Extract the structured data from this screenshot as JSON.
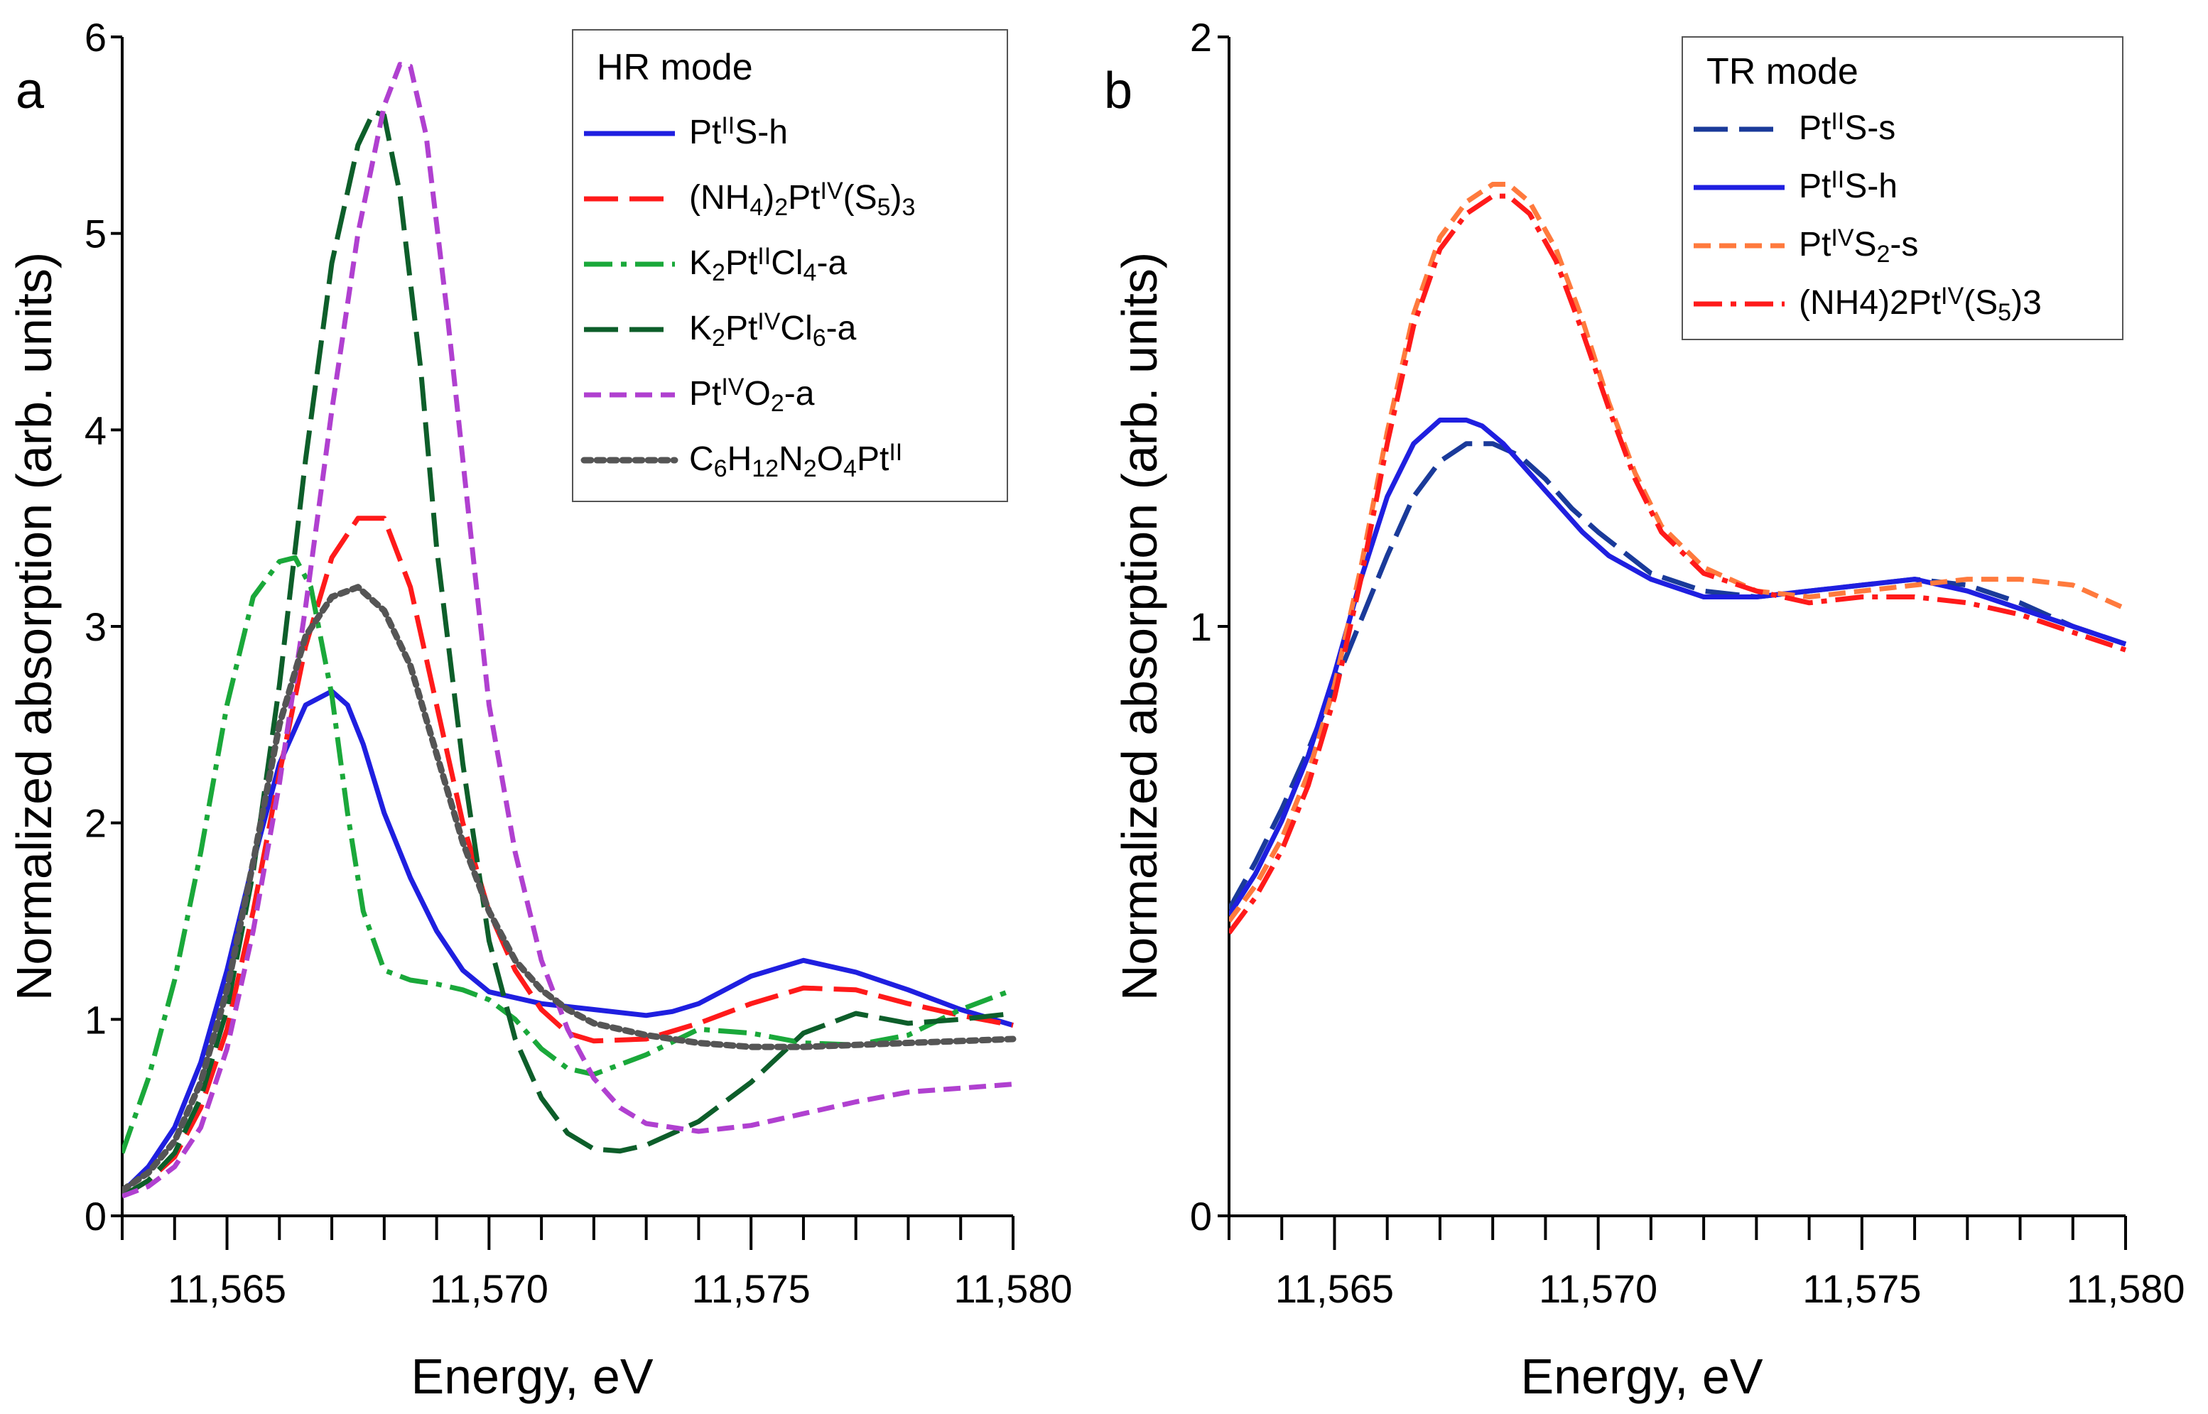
{
  "chart_data": [
    {
      "panel": "a",
      "type": "line",
      "xlabel": "Energy, eV",
      "ylabel": "Normalized absorption (arb. units)",
      "xlim": [
        11563,
        11580
      ],
      "ylim": [
        0,
        6
      ],
      "xticks": [
        11565,
        11570,
        11575,
        11580
      ],
      "xtick_labels": [
        "11,565",
        "11,570",
        "11,575",
        "11,580"
      ],
      "yticks": [
        0,
        1,
        2,
        3,
        4,
        5,
        6
      ],
      "ytick_labels": [
        "0",
        "1",
        "2",
        "3",
        "4",
        "5",
        "6"
      ],
      "legend_title": "HR mode",
      "legend_position": "top-right",
      "series": [
        {
          "name": "PtIIS-h",
          "label_parts": [
            [
              "Pt",
              "n"
            ],
            [
              "II",
              "sup"
            ],
            [
              "S-h",
              "n"
            ]
          ],
          "color": "#1f1fe0",
          "dash": "solid",
          "x": [
            11563,
            11563.5,
            11564,
            11564.5,
            11565,
            11565.5,
            11566,
            11566.5,
            11567,
            11567.3,
            11567.6,
            11568,
            11568.5,
            11569,
            11569.5,
            11570,
            11571,
            11572,
            11573,
            11573.5,
            11574,
            11574.5,
            11575,
            11576,
            11577,
            11578,
            11579,
            11580
          ],
          "y": [
            0.12,
            0.25,
            0.45,
            0.78,
            1.25,
            1.8,
            2.3,
            2.6,
            2.67,
            2.6,
            2.4,
            2.05,
            1.72,
            1.45,
            1.25,
            1.14,
            1.08,
            1.05,
            1.02,
            1.04,
            1.08,
            1.15,
            1.22,
            1.3,
            1.24,
            1.15,
            1.05,
            0.97
          ]
        },
        {
          "name": "(NH4)2PtIV(S5)3",
          "label_parts": [
            [
              "(NH",
              "n"
            ],
            [
              "4",
              "sub"
            ],
            [
              ")",
              "n"
            ],
            [
              "2",
              "sub"
            ],
            [
              "Pt",
              "n"
            ],
            [
              "IV",
              "sup"
            ],
            [
              "(S",
              "n"
            ],
            [
              "5",
              "sub"
            ],
            [
              ")",
              "n"
            ],
            [
              "3",
              "sub"
            ]
          ],
          "color": "#ff1a1a",
          "dash": "longdash",
          "x": [
            11563,
            11563.5,
            11564,
            11564.5,
            11565,
            11565.5,
            11566,
            11566.5,
            11567,
            11567.5,
            11568,
            11568.5,
            11569,
            11569.5,
            11570,
            11570.5,
            11571,
            11571.5,
            11572,
            11573,
            11574,
            11575,
            11576,
            11577,
            11578,
            11579,
            11580
          ],
          "y": [
            0.1,
            0.18,
            0.3,
            0.55,
            0.95,
            1.55,
            2.25,
            2.9,
            3.35,
            3.55,
            3.55,
            3.2,
            2.6,
            2.0,
            1.55,
            1.25,
            1.05,
            0.93,
            0.89,
            0.9,
            0.98,
            1.08,
            1.16,
            1.15,
            1.08,
            1.02,
            0.97
          ]
        },
        {
          "name": "K2PtIICl4-a",
          "label_parts": [
            [
              "K",
              "n"
            ],
            [
              "2",
              "sub"
            ],
            [
              "Pt",
              "n"
            ],
            [
              "II",
              "sup"
            ],
            [
              "Cl",
              "n"
            ],
            [
              "4",
              "sub"
            ],
            [
              "-a",
              "n"
            ]
          ],
          "color": "#1aa83a",
          "dash": "dashdot",
          "x": [
            11563,
            11563.5,
            11564,
            11564.5,
            11565,
            11565.5,
            11566,
            11566.3,
            11566.6,
            11567,
            11567.3,
            11567.6,
            11568,
            11568.5,
            11569,
            11569.5,
            11570,
            11570.5,
            11571,
            11571.5,
            11572,
            11573,
            11574,
            11575,
            11576,
            11577,
            11578,
            11579,
            11580
          ],
          "y": [
            0.32,
            0.7,
            1.2,
            1.85,
            2.6,
            3.15,
            3.33,
            3.35,
            3.2,
            2.65,
            2.05,
            1.55,
            1.25,
            1.2,
            1.18,
            1.15,
            1.1,
            1.0,
            0.85,
            0.75,
            0.72,
            0.82,
            0.95,
            0.93,
            0.88,
            0.87,
            0.92,
            1.05,
            1.15
          ]
        },
        {
          "name": "K2PtIVCl6-a",
          "label_parts": [
            [
              "K",
              "n"
            ],
            [
              "2",
              "sub"
            ],
            [
              "Pt",
              "n"
            ],
            [
              "IV",
              "sup"
            ],
            [
              "Cl",
              "n"
            ],
            [
              "6",
              "sub"
            ],
            [
              "-a",
              "n"
            ]
          ],
          "color": "#0d5e2a",
          "dash": "longdash",
          "x": [
            11563,
            11563.5,
            11564,
            11564.5,
            11565,
            11565.5,
            11566,
            11566.5,
            11567,
            11567.5,
            11567.8,
            11568,
            11568.3,
            11568.7,
            11569,
            11569.5,
            11570,
            11570.5,
            11571,
            11571.5,
            11572,
            11572.5,
            11573,
            11574,
            11575,
            11576,
            11577,
            11578,
            11579,
            11580
          ],
          "y": [
            0.1,
            0.18,
            0.32,
            0.6,
            1.05,
            1.75,
            2.7,
            3.85,
            4.85,
            5.45,
            5.62,
            5.6,
            5.2,
            4.3,
            3.4,
            2.3,
            1.4,
            0.9,
            0.6,
            0.42,
            0.34,
            0.33,
            0.36,
            0.48,
            0.68,
            0.93,
            1.03,
            0.98,
            1.0,
            1.03
          ]
        },
        {
          "name": "PtIVO2-a",
          "label_parts": [
            [
              "Pt",
              "n"
            ],
            [
              "IV",
              "sup"
            ],
            [
              "O",
              "n"
            ],
            [
              "2",
              "sub"
            ],
            [
              "-a",
              "n"
            ]
          ],
          "color": "#b040d0",
          "dash": "shortdash",
          "x": [
            11563,
            11563.5,
            11564,
            11564.5,
            11565,
            11565.5,
            11566,
            11566.5,
            11567,
            11567.5,
            11568,
            11568.3,
            11568.5,
            11568.8,
            11569.2,
            11569.6,
            11570,
            11570.5,
            11571,
            11571.5,
            11572,
            11572.5,
            11573,
            11574,
            11575,
            11576,
            11577,
            11578,
            11579,
            11580
          ],
          "y": [
            0.1,
            0.15,
            0.25,
            0.45,
            0.85,
            1.45,
            2.2,
            3.1,
            4.1,
            5.0,
            5.65,
            5.86,
            5.85,
            5.5,
            4.6,
            3.6,
            2.6,
            1.85,
            1.3,
            0.95,
            0.7,
            0.55,
            0.47,
            0.43,
            0.46,
            0.52,
            0.58,
            0.63,
            0.65,
            0.67
          ]
        },
        {
          "name": "C6H12N2O4PtII",
          "label_parts": [
            [
              "C",
              "n"
            ],
            [
              "6",
              "sub"
            ],
            [
              "H",
              "n"
            ],
            [
              "12",
              "sub"
            ],
            [
              "N",
              "n"
            ],
            [
              "2",
              "sub"
            ],
            [
              "O",
              "n"
            ],
            [
              "4",
              "sub"
            ],
            [
              "Pt",
              "n"
            ],
            [
              "II",
              "sup"
            ]
          ],
          "color": "#555555",
          "dash": "dotted",
          "x": [
            11563,
            11563.5,
            11564,
            11564.5,
            11565,
            11565.5,
            11566,
            11566.5,
            11567,
            11567.5,
            11568,
            11568.5,
            11569,
            11569.5,
            11570,
            11570.5,
            11571,
            11571.5,
            11572,
            11573,
            11574,
            11575,
            11576,
            11577,
            11578,
            11579,
            11580
          ],
          "y": [
            0.13,
            0.22,
            0.38,
            0.68,
            1.15,
            1.8,
            2.5,
            2.95,
            3.15,
            3.2,
            3.08,
            2.8,
            2.35,
            1.9,
            1.55,
            1.3,
            1.15,
            1.05,
            0.98,
            0.92,
            0.88,
            0.86,
            0.86,
            0.87,
            0.88,
            0.89,
            0.9
          ]
        }
      ]
    },
    {
      "panel": "b",
      "type": "line",
      "xlabel": "Energy, eV",
      "ylabel": "Normalized absorption (arb. units)",
      "xlim": [
        11563,
        11580
      ],
      "ylim": [
        0,
        2
      ],
      "xticks": [
        11565,
        11570,
        11575,
        11580
      ],
      "xtick_labels": [
        "11,565",
        "11,570",
        "11,575",
        "11,580"
      ],
      "yticks": [
        0,
        1,
        2
      ],
      "ytick_labels": [
        "0",
        "1",
        "2"
      ],
      "legend_title": "TR mode",
      "legend_position": "top-right",
      "series": [
        {
          "name": "PtIIS-s",
          "label_parts": [
            [
              "Pt",
              "n"
            ],
            [
              "II",
              "sup"
            ],
            [
              "S-s",
              "n"
            ]
          ],
          "color": "#1a3a9a",
          "dash": "longdash",
          "x": [
            11563,
            11563.5,
            11564,
            11564.5,
            11565,
            11565.5,
            11566,
            11566.5,
            11567,
            11567.5,
            11568,
            11568.5,
            11569,
            11569.5,
            11570,
            11571,
            11572,
            11573,
            11574,
            11575,
            11576,
            11577,
            11578,
            11579,
            11580
          ],
          "y": [
            0.52,
            0.6,
            0.69,
            0.79,
            0.9,
            1.01,
            1.12,
            1.22,
            1.28,
            1.31,
            1.31,
            1.29,
            1.25,
            1.2,
            1.16,
            1.09,
            1.06,
            1.05,
            1.06,
            1.07,
            1.08,
            1.07,
            1.04,
            1.0,
            0.97
          ]
        },
        {
          "name": "PtIIS-h",
          "label_parts": [
            [
              "Pt",
              "n"
            ],
            [
              "II",
              "sup"
            ],
            [
              "S-h",
              "n"
            ]
          ],
          "color": "#1f1fe0",
          "dash": "solid",
          "x": [
            11563,
            11563.5,
            11564,
            11564.5,
            11565,
            11565.5,
            11566,
            11566.5,
            11567,
            11567.5,
            11567.8,
            11568.2,
            11568.7,
            11569.2,
            11569.7,
            11570.2,
            11571,
            11572,
            11573,
            11574,
            11575,
            11576,
            11577,
            11578,
            11579,
            11580
          ],
          "y": [
            0.51,
            0.58,
            0.67,
            0.78,
            0.92,
            1.08,
            1.22,
            1.31,
            1.35,
            1.35,
            1.34,
            1.31,
            1.26,
            1.21,
            1.16,
            1.12,
            1.08,
            1.05,
            1.05,
            1.06,
            1.07,
            1.08,
            1.06,
            1.03,
            1.0,
            0.97
          ]
        },
        {
          "name": "PtIVS2-s",
          "label_parts": [
            [
              "Pt",
              "n"
            ],
            [
              "IV",
              "sup"
            ],
            [
              "S",
              "n"
            ],
            [
              "2",
              "sub"
            ],
            [
              "-s",
              "n"
            ]
          ],
          "color": "#ff7a3d",
          "dash": "shortdash",
          "x": [
            11563,
            11563.5,
            11564,
            11564.5,
            11565,
            11565.5,
            11566,
            11566.5,
            11567,
            11567.5,
            11568,
            11568.3,
            11568.7,
            11569.2,
            11569.7,
            11570.2,
            11570.7,
            11571.2,
            11572,
            11573,
            11574,
            11575,
            11576,
            11577,
            11578,
            11579,
            11580
          ],
          "y": [
            0.5,
            0.56,
            0.64,
            0.75,
            0.9,
            1.1,
            1.33,
            1.53,
            1.66,
            1.72,
            1.75,
            1.75,
            1.72,
            1.64,
            1.52,
            1.38,
            1.26,
            1.17,
            1.1,
            1.06,
            1.05,
            1.06,
            1.07,
            1.08,
            1.08,
            1.07,
            1.03
          ]
        },
        {
          "name": "(NH4)2PtIV(S5)3",
          "label_parts": [
            [
              "(NH4)2Pt",
              "n"
            ],
            [
              "IV",
              "sup"
            ],
            [
              "(S",
              "n"
            ],
            [
              "5",
              "sub"
            ],
            [
              ")3",
              "n"
            ]
          ],
          "color": "#ff1a1a",
          "dash": "dashdot",
          "x": [
            11563,
            11563.5,
            11564,
            11564.5,
            11565,
            11565.5,
            11566,
            11566.5,
            11567,
            11567.5,
            11568,
            11568.3,
            11568.7,
            11569.2,
            11569.7,
            11570.2,
            11570.7,
            11571.2,
            11572,
            11573,
            11574,
            11575,
            11576,
            11577,
            11578,
            11579,
            11580
          ],
          "y": [
            0.48,
            0.54,
            0.62,
            0.73,
            0.88,
            1.08,
            1.31,
            1.51,
            1.64,
            1.7,
            1.73,
            1.73,
            1.7,
            1.62,
            1.5,
            1.37,
            1.25,
            1.16,
            1.09,
            1.06,
            1.04,
            1.05,
            1.05,
            1.04,
            1.02,
            0.99,
            0.96
          ]
        }
      ]
    }
  ]
}
